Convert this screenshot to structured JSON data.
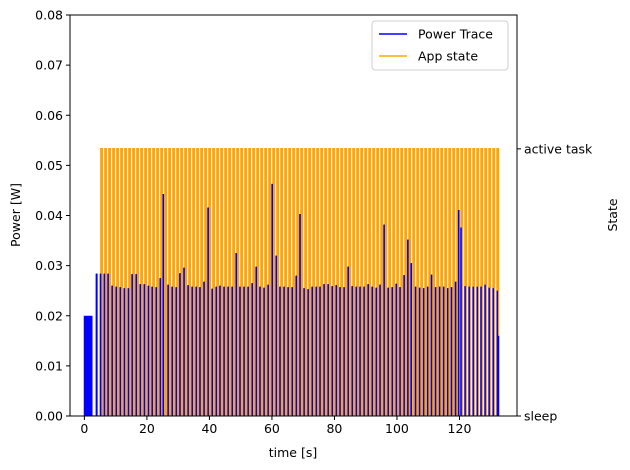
{
  "chart_data": {
    "type": "line",
    "title": "",
    "xlabel": "time [s]",
    "ylabel": "Power [W]",
    "y2label": "State",
    "xlim": [
      -4.6,
      138.4
    ],
    "ylim": [
      0,
      0.08
    ],
    "x_ticks": [
      {
        "value": 0,
        "label": "0"
      },
      {
        "value": 20,
        "label": "20"
      },
      {
        "value": 40,
        "label": "40"
      },
      {
        "value": 60,
        "label": "60"
      },
      {
        "value": 80,
        "label": "80"
      },
      {
        "value": 100,
        "label": "100"
      },
      {
        "value": 120,
        "label": "120"
      }
    ],
    "y_ticks": [
      {
        "value": 0,
        "label": "0.00"
      },
      {
        "value": 0.01,
        "label": "0.01"
      },
      {
        "value": 0.02,
        "label": "0.02"
      },
      {
        "value": 0.03,
        "label": "0.03"
      },
      {
        "value": 0.04,
        "label": "0.04"
      },
      {
        "value": 0.05,
        "label": "0.05"
      },
      {
        "value": 0.06,
        "label": "0.06"
      },
      {
        "value": 0.07,
        "label": "0.07"
      },
      {
        "value": 0.08,
        "label": "0.08"
      }
    ],
    "y2_ticks": [
      {
        "value": 0.0,
        "label": "sleep"
      },
      {
        "value": 0.0533,
        "label": "active task"
      }
    ],
    "grid": false,
    "legend_position": "top-right",
    "series": [
      {
        "name": "Power Trace",
        "color": "#0000ff",
        "style": "line",
        "startup": {
          "x_start": -0.2,
          "x_end": 2.6,
          "value": 0.02
        },
        "baseline": 0.0,
        "period": 1.28,
        "cycles": [
          {
            "x": 3.6,
            "peak": 0.0284
          },
          {
            "x": 4.9,
            "peak": 0.0284
          },
          {
            "x": 6.1,
            "peak": 0.0284
          },
          {
            "x": 7.3,
            "peak": 0.0284
          },
          {
            "x": 8.6,
            "peak": 0.026
          },
          {
            "x": 9.9,
            "peak": 0.0258
          },
          {
            "x": 11.2,
            "peak": 0.0257
          },
          {
            "x": 12.5,
            "peak": 0.0255
          },
          {
            "x": 13.8,
            "peak": 0.0255
          },
          {
            "x": 15.0,
            "peak": 0.0283
          },
          {
            "x": 16.3,
            "peak": 0.0283
          },
          {
            "x": 17.6,
            "peak": 0.0263
          },
          {
            "x": 18.9,
            "peak": 0.0263
          },
          {
            "x": 20.2,
            "peak": 0.026
          },
          {
            "x": 21.4,
            "peak": 0.0258
          },
          {
            "x": 22.7,
            "peak": 0.0257
          },
          {
            "x": 24.0,
            "peak": 0.0275
          },
          {
            "x": 24.9,
            "peak": 0.0443
          },
          {
            "x": 26.5,
            "peak": 0.0262
          },
          {
            "x": 27.8,
            "peak": 0.0258
          },
          {
            "x": 29.1,
            "peak": 0.0257
          },
          {
            "x": 30.3,
            "peak": 0.0285
          },
          {
            "x": 31.6,
            "peak": 0.0296
          },
          {
            "x": 32.9,
            "peak": 0.0261
          },
          {
            "x": 34.2,
            "peak": 0.0258
          },
          {
            "x": 35.5,
            "peak": 0.0258
          },
          {
            "x": 36.7,
            "peak": 0.0257
          },
          {
            "x": 38.0,
            "peak": 0.0268
          },
          {
            "x": 39.3,
            "peak": 0.0416
          },
          {
            "x": 40.6,
            "peak": 0.0254
          },
          {
            "x": 41.9,
            "peak": 0.0258
          },
          {
            "x": 43.1,
            "peak": 0.026
          },
          {
            "x": 44.4,
            "peak": 0.0258
          },
          {
            "x": 45.7,
            "peak": 0.0258
          },
          {
            "x": 47.0,
            "peak": 0.0258
          },
          {
            "x": 48.3,
            "peak": 0.0325
          },
          {
            "x": 49.5,
            "peak": 0.0258
          },
          {
            "x": 50.8,
            "peak": 0.0258
          },
          {
            "x": 52.1,
            "peak": 0.0258
          },
          {
            "x": 53.4,
            "peak": 0.0265
          },
          {
            "x": 54.7,
            "peak": 0.0298
          },
          {
            "x": 55.9,
            "peak": 0.0258
          },
          {
            "x": 57.2,
            "peak": 0.0256
          },
          {
            "x": 58.5,
            "peak": 0.0262
          },
          {
            "x": 59.8,
            "peak": 0.0463
          },
          {
            "x": 61.1,
            "peak": 0.032
          },
          {
            "x": 62.3,
            "peak": 0.0258
          },
          {
            "x": 63.6,
            "peak": 0.0258
          },
          {
            "x": 64.9,
            "peak": 0.0257
          },
          {
            "x": 66.2,
            "peak": 0.0257
          },
          {
            "x": 67.5,
            "peak": 0.028
          },
          {
            "x": 68.7,
            "peak": 0.0403
          },
          {
            "x": 70.0,
            "peak": 0.0255
          },
          {
            "x": 71.3,
            "peak": 0.0253
          },
          {
            "x": 72.6,
            "peak": 0.0258
          },
          {
            "x": 73.9,
            "peak": 0.0258
          },
          {
            "x": 75.1,
            "peak": 0.0258
          },
          {
            "x": 76.4,
            "peak": 0.0263
          },
          {
            "x": 77.7,
            "peak": 0.0263
          },
          {
            "x": 79.0,
            "peak": 0.0259
          },
          {
            "x": 80.3,
            "peak": 0.0261
          },
          {
            "x": 81.5,
            "peak": 0.0257
          },
          {
            "x": 82.8,
            "peak": 0.0257
          },
          {
            "x": 84.1,
            "peak": 0.0298
          },
          {
            "x": 85.4,
            "peak": 0.0259
          },
          {
            "x": 86.7,
            "peak": 0.0258
          },
          {
            "x": 87.9,
            "peak": 0.0258
          },
          {
            "x": 89.2,
            "peak": 0.0258
          },
          {
            "x": 90.5,
            "peak": 0.0263
          },
          {
            "x": 91.8,
            "peak": 0.0258
          },
          {
            "x": 93.1,
            "peak": 0.0256
          },
          {
            "x": 94.3,
            "peak": 0.0262
          },
          {
            "x": 95.6,
            "peak": 0.0382
          },
          {
            "x": 96.9,
            "peak": 0.0256
          },
          {
            "x": 98.2,
            "peak": 0.0257
          },
          {
            "x": 99.5,
            "peak": 0.0264
          },
          {
            "x": 100.7,
            "peak": 0.0257
          },
          {
            "x": 102.0,
            "peak": 0.0281
          },
          {
            "x": 103.2,
            "peak": 0.0352
          },
          {
            "x": 104.2,
            "peak": 0.0305
          },
          {
            "x": 105.6,
            "peak": 0.0258
          },
          {
            "x": 106.9,
            "peak": 0.0256
          },
          {
            "x": 108.2,
            "peak": 0.0255
          },
          {
            "x": 109.5,
            "peak": 0.0258
          },
          {
            "x": 110.7,
            "peak": 0.0282
          },
          {
            "x": 112.0,
            "peak": 0.0257
          },
          {
            "x": 113.3,
            "peak": 0.0258
          },
          {
            "x": 114.6,
            "peak": 0.0258
          },
          {
            "x": 115.9,
            "peak": 0.0255
          },
          {
            "x": 117.1,
            "peak": 0.0257
          },
          {
            "x": 118.4,
            "peak": 0.0268
          },
          {
            "x": 119.4,
            "peak": 0.0411
          },
          {
            "x": 120.2,
            "peak": 0.0376
          },
          {
            "x": 121.5,
            "peak": 0.0259
          },
          {
            "x": 122.8,
            "peak": 0.0258
          },
          {
            "x": 124.1,
            "peak": 0.0258
          },
          {
            "x": 125.4,
            "peak": 0.0258
          },
          {
            "x": 126.6,
            "peak": 0.0258
          },
          {
            "x": 127.9,
            "peak": 0.0262
          },
          {
            "x": 129.2,
            "peak": 0.0256
          },
          {
            "x": 130.5,
            "peak": 0.0255
          },
          {
            "x": 131.8,
            "peak": 0.025
          }
        ]
      },
      {
        "name": "App state",
        "color": "#ffa500",
        "style": "step",
        "low_value": 0.0,
        "high_value": 0.0533,
        "first_active": 5.3,
        "last_active": 132.0,
        "period": 1.28,
        "active_duration": 0.42
      }
    ],
    "tail_segment": {
      "x": 132.5,
      "y_from": 0.0,
      "y_to": 0.016
    }
  }
}
